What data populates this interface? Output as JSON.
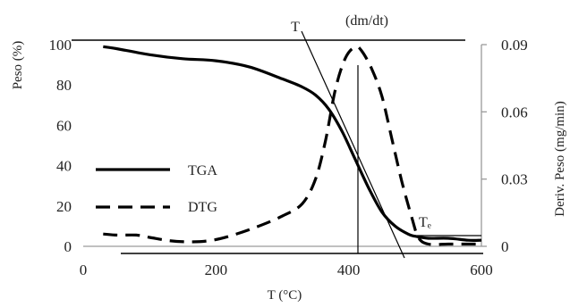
{
  "chart_data": {
    "type": "line",
    "xlabel": "T (°C)",
    "ylabel_left": "Peso (%)",
    "ylabel_right": "Deriv. Peso (mg/min)",
    "xlim": [
      0,
      600
    ],
    "ylim_left": [
      0,
      100
    ],
    "ylim_right": [
      0,
      0.09
    ],
    "x_ticks": [
      "0",
      "200",
      "400",
      "600"
    ],
    "y_ticks_left": [
      "0",
      "20",
      "40",
      "60",
      "80",
      "100"
    ],
    "y_ticks_right": [
      "0",
      "0.03",
      "0.06",
      "0.09"
    ],
    "legend_position": "center-left",
    "grid": false,
    "annotations": {
      "top_tangent_label": "T",
      "peak_label": "(dm/dt)",
      "end_label": "Tₑ"
    },
    "series": [
      {
        "name": "TGA",
        "axis": "left",
        "style": "solid",
        "color": "#000000",
        "x": [
          30,
          50,
          100,
          150,
          200,
          250,
          300,
          330,
          350,
          370,
          390,
          410,
          430,
          450,
          470,
          490,
          500,
          520,
          550,
          580,
          600
        ],
        "y": [
          99,
          98,
          95,
          93,
          92,
          89,
          83,
          79,
          75,
          68,
          57,
          43,
          29,
          17,
          10,
          6,
          5,
          4,
          4,
          3,
          3
        ]
      },
      {
        "name": "DTG",
        "axis": "right",
        "style": "dashed",
        "color": "#000000",
        "x": [
          30,
          50,
          80,
          100,
          130,
          160,
          190,
          220,
          260,
          300,
          330,
          350,
          365,
          380,
          395,
          410,
          420,
          435,
          450,
          465,
          480,
          495,
          505,
          520,
          550,
          580,
          600
        ],
        "y": [
          0.0055,
          0.005,
          0.005,
          0.004,
          0.0025,
          0.002,
          0.0025,
          0.0045,
          0.0085,
          0.0135,
          0.019,
          0.03,
          0.047,
          0.07,
          0.084,
          0.089,
          0.087,
          0.079,
          0.067,
          0.048,
          0.029,
          0.013,
          0.004,
          0.001,
          0.001,
          0.001,
          0.001
        ]
      }
    ]
  }
}
